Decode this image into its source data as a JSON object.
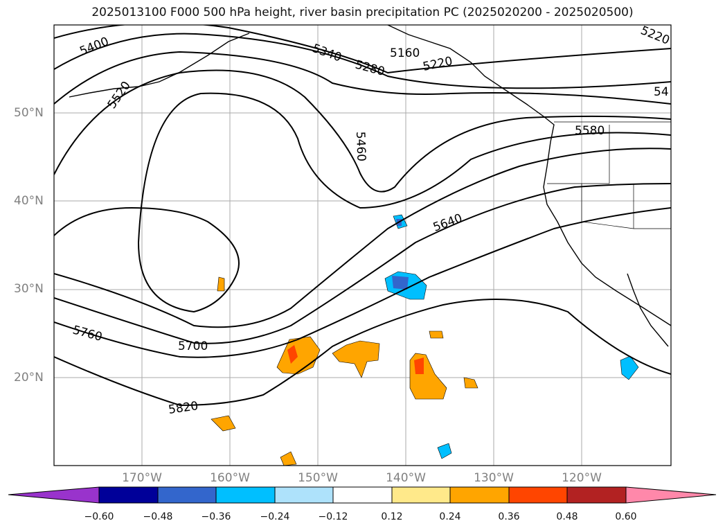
{
  "title": "2025013100 F000 500 hPa height, river basin precipitation PC (2025020200 - 2025020500)",
  "lat_labels": [
    "50°N",
    "40°N",
    "30°N",
    "20°N"
  ],
  "lon_labels": [
    "170°W",
    "160°W",
    "150°W",
    "140°W",
    "130°W",
    "120°W"
  ],
  "contour_labels": [
    "5400",
    "5520",
    "5340",
    "5280",
    "5160",
    "5220",
    "5220",
    "5460",
    "54",
    "5580",
    "5640",
    "5760",
    "5700",
    "5820"
  ],
  "colorbar": {
    "ticks": [
      "−0.60",
      "−0.48",
      "−0.36",
      "−0.24",
      "−0.12",
      "0.12",
      "0.24",
      "0.36",
      "0.48",
      "0.60"
    ],
    "colors": [
      "#9933cc",
      "#000099",
      "#3366cc",
      "#00bfff",
      "#aee2fb",
      "#ffffff",
      "#ffe98a",
      "#ffa500",
      "#ff4500",
      "#b22222",
      "#ff88aa"
    ]
  }
}
